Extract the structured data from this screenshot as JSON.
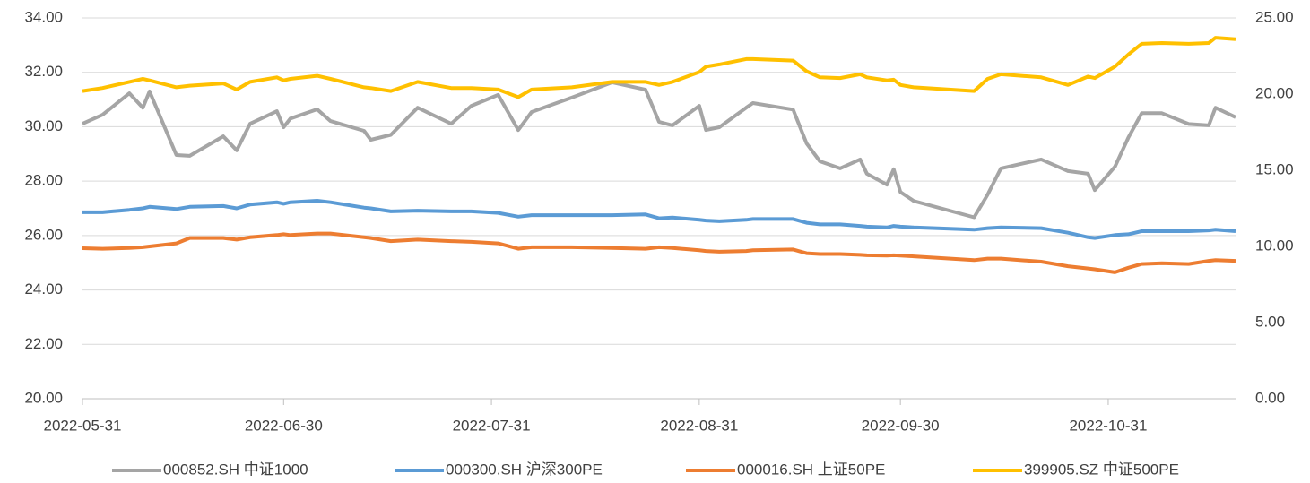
{
  "chart_data": {
    "type": "line",
    "x": [
      "2022-05-31",
      "2022-06-03",
      "2022-06-07",
      "2022-06-09",
      "2022-06-10",
      "2022-06-14",
      "2022-06-16",
      "2022-06-21",
      "2022-06-23",
      "2022-06-25",
      "2022-06-29",
      "2022-06-30",
      "2022-07-01",
      "2022-07-05",
      "2022-07-07",
      "2022-07-12",
      "2022-07-13",
      "2022-07-16",
      "2022-07-20",
      "2022-07-25",
      "2022-07-28",
      "2022-08-01",
      "2022-08-04",
      "2022-08-06",
      "2022-08-12",
      "2022-08-18",
      "2022-08-23",
      "2022-08-25",
      "2022-08-27",
      "2022-08-31",
      "2022-09-01",
      "2022-09-03",
      "2022-09-07",
      "2022-09-08",
      "2022-09-14",
      "2022-09-16",
      "2022-09-18",
      "2022-09-21",
      "2022-09-24",
      "2022-09-25",
      "2022-09-28",
      "2022-09-29",
      "2022-09-30",
      "2022-10-02",
      "2022-10-11",
      "2022-10-13",
      "2022-10-15",
      "2022-10-21",
      "2022-10-25",
      "2022-10-28",
      "2022-10-29",
      "2022-11-01",
      "2022-11-03",
      "2022-11-05",
      "2022-11-08",
      "2022-11-12",
      "2022-11-15",
      "2022-11-16",
      "2022-11-19"
    ],
    "series": [
      {
        "name": "000852.SH 中证1000",
        "color": "#a5a5a5",
        "axis": "y",
        "values": [
          30.11,
          30.44,
          31.23,
          30.7,
          31.3,
          28.96,
          28.93,
          29.65,
          29.13,
          30.11,
          30.57,
          29.98,
          30.3,
          30.64,
          30.21,
          29.85,
          29.52,
          29.7,
          30.7,
          30.11,
          30.77,
          31.17,
          29.88,
          30.54,
          31.07,
          31.63,
          31.36,
          30.18,
          30.05,
          30.77,
          29.88,
          29.98,
          30.7,
          30.87,
          30.63,
          29.39,
          28.73,
          28.47,
          28.8,
          28.27,
          27.87,
          28.44,
          27.6,
          27.27,
          26.67,
          27.5,
          28.47,
          28.8,
          28.37,
          28.27,
          27.67,
          28.53,
          29.6,
          30.5,
          30.5,
          30.1,
          30.05,
          30.7,
          30.35
        ]
      },
      {
        "name": "000300.SH 沪深300PE",
        "color": "#5b9bd5",
        "axis": "y2",
        "values": [
          12.24,
          12.24,
          12.4,
          12.5,
          12.6,
          12.45,
          12.6,
          12.65,
          12.5,
          12.75,
          12.9,
          12.8,
          12.9,
          13.0,
          12.9,
          12.55,
          12.5,
          12.3,
          12.35,
          12.3,
          12.3,
          12.2,
          11.95,
          12.05,
          12.05,
          12.05,
          12.1,
          11.85,
          11.9,
          11.75,
          11.7,
          11.65,
          11.75,
          11.8,
          11.8,
          11.55,
          11.45,
          11.45,
          11.35,
          11.3,
          11.25,
          11.35,
          11.3,
          11.25,
          11.1,
          11.2,
          11.25,
          11.2,
          10.9,
          10.6,
          10.55,
          10.75,
          10.8,
          11.0,
          11.0,
          11.0,
          11.05,
          11.1,
          11.0
        ]
      },
      {
        "name": "000016.SH 上证50PE",
        "color": "#ed7d31",
        "axis": "y2",
        "values": [
          9.88,
          9.85,
          9.9,
          9.95,
          10.0,
          10.2,
          10.55,
          10.55,
          10.45,
          10.6,
          10.75,
          10.8,
          10.75,
          10.85,
          10.85,
          10.6,
          10.55,
          10.35,
          10.45,
          10.35,
          10.3,
          10.2,
          9.85,
          9.95,
          9.95,
          9.9,
          9.85,
          9.95,
          9.9,
          9.75,
          9.7,
          9.65,
          9.7,
          9.75,
          9.8,
          9.55,
          9.5,
          9.5,
          9.45,
          9.42,
          9.4,
          9.42,
          9.4,
          9.35,
          9.1,
          9.2,
          9.2,
          9.0,
          8.7,
          8.55,
          8.5,
          8.3,
          8.6,
          8.85,
          8.9,
          8.85,
          9.05,
          9.1,
          9.05
        ]
      },
      {
        "name": "399905.SZ 中证500PE",
        "color": "#ffc000",
        "axis": "y2",
        "values": [
          20.2,
          20.4,
          20.8,
          21.0,
          20.9,
          20.45,
          20.55,
          20.7,
          20.3,
          20.8,
          21.1,
          20.9,
          21.0,
          21.2,
          21.0,
          20.45,
          20.4,
          20.2,
          20.8,
          20.4,
          20.4,
          20.3,
          19.8,
          20.3,
          20.45,
          20.8,
          20.8,
          20.6,
          20.8,
          21.45,
          21.8,
          21.95,
          22.3,
          22.3,
          22.2,
          21.5,
          21.1,
          21.05,
          21.3,
          21.1,
          20.9,
          20.95,
          20.6,
          20.45,
          20.2,
          21.0,
          21.3,
          21.1,
          20.6,
          21.15,
          21.05,
          21.8,
          22.6,
          23.3,
          23.35,
          23.3,
          23.35,
          23.7,
          23.6
        ]
      }
    ],
    "xlim": [
      "2022-05-31",
      "2022-11-19"
    ],
    "xticks": [
      "2022-05-31",
      "2022-06-30",
      "2022-07-31",
      "2022-08-31",
      "2022-09-30",
      "2022-10-31"
    ],
    "ylim": [
      20,
      34
    ],
    "yticks": [
      {
        "value": 20,
        "label": "20.00"
      },
      {
        "value": 22,
        "label": "22.00"
      },
      {
        "value": 24,
        "label": "24.00"
      },
      {
        "value": 26,
        "label": "26.00"
      },
      {
        "value": 28,
        "label": "28.00"
      },
      {
        "value": 30,
        "label": "30.00"
      },
      {
        "value": 32,
        "label": "32.00"
      },
      {
        "value": 34,
        "label": "34.00"
      }
    ],
    "y2lim": [
      0,
      25
    ],
    "y2ticks": [
      {
        "value": 0,
        "label": "0.00"
      },
      {
        "value": 5,
        "label": "5.00"
      },
      {
        "value": 10,
        "label": "10.00"
      },
      {
        "value": 15,
        "label": "15.00"
      },
      {
        "value": 20,
        "label": "20.00"
      },
      {
        "value": 25,
        "label": "25.00"
      }
    ],
    "grid": true,
    "legend": "bottom"
  }
}
